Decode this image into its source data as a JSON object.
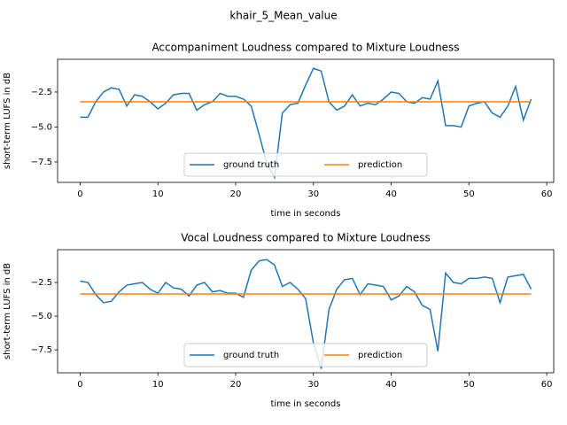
{
  "title": "khair_5_Mean_value",
  "chart_data": [
    {
      "type": "line",
      "title": "Accompaniment Loudness compared to Mixture Loudness",
      "x_label": "time in seconds",
      "y_label": "short-term LUFS in dB",
      "x": [
        0,
        1,
        2,
        3,
        4,
        5,
        6,
        7,
        8,
        9,
        10,
        11,
        12,
        13,
        14,
        15,
        16,
        17,
        18,
        19,
        20,
        21,
        22,
        23,
        24,
        25,
        26,
        27,
        28,
        29,
        30,
        31,
        32,
        33,
        34,
        35,
        36,
        37,
        38,
        39,
        40,
        41,
        42,
        43,
        44,
        45,
        46,
        47,
        48,
        49,
        50,
        51,
        52,
        53,
        54,
        55,
        56,
        57,
        58
      ],
      "series": [
        {
          "name": "ground truth",
          "color": "#1f77b4",
          "values": [
            -4.3,
            -4.3,
            -3.2,
            -2.5,
            -2.2,
            -2.3,
            -3.5,
            -2.7,
            -2.8,
            -3.2,
            -3.7,
            -3.3,
            -2.7,
            -2.6,
            -2.6,
            -3.8,
            -3.4,
            -3.2,
            -2.6,
            -2.8,
            -2.8,
            -3.0,
            -3.5,
            -5.5,
            -7.6,
            -8.6,
            -4.0,
            -3.4,
            -3.3,
            -2.0,
            -0.8,
            -1.0,
            -3.2,
            -3.8,
            -3.5,
            -2.7,
            -3.5,
            -3.3,
            -3.4,
            -3.0,
            -2.5,
            -2.6,
            -3.2,
            -3.3,
            -2.9,
            -3.0,
            -1.7,
            -4.9,
            -4.9,
            -5.0,
            -3.5,
            -3.3,
            -3.2,
            -4.0,
            -4.3,
            -3.5,
            -2.1,
            -4.5,
            -3.0
          ]
        },
        {
          "name": "prediction",
          "color": "#ff7f0e",
          "values": [
            -3.2,
            -3.2,
            -3.2,
            -3.2,
            -3.2,
            -3.2,
            -3.2,
            -3.2,
            -3.2,
            -3.2,
            -3.2,
            -3.2,
            -3.2,
            -3.2,
            -3.2,
            -3.2,
            -3.2,
            -3.2,
            -3.2,
            -3.2,
            -3.2,
            -3.2,
            -3.2,
            -3.2,
            -3.2,
            -3.2,
            -3.2,
            -3.2,
            -3.2,
            -3.2,
            -3.2,
            -3.2,
            -3.2,
            -3.2,
            -3.2,
            -3.2,
            -3.2,
            -3.2,
            -3.2,
            -3.2,
            -3.2,
            -3.2,
            -3.2,
            -3.2,
            -3.2,
            -3.2,
            -3.2,
            -3.2,
            -3.2,
            -3.2,
            -3.2,
            -3.2,
            -3.2,
            -3.2,
            -3.2,
            -3.2,
            -3.2,
            -3.2,
            -3.2
          ]
        }
      ],
      "xlim": [
        -2.9,
        60.9
      ],
      "ylim": [
        -8.96,
        -0.16
      ],
      "xticks": [
        0,
        10,
        20,
        30,
        40,
        50,
        60
      ],
      "yticks": [
        {
          "value": -7.5,
          "label": "−7.5"
        },
        {
          "value": -5,
          "label": "−5.0"
        },
        {
          "value": -2.5,
          "label": "−2.5"
        }
      ],
      "grid": false,
      "legend": "lower center"
    },
    {
      "type": "line",
      "title": "Vocal Loudness compared to Mixture Loudness",
      "x_label": "time in seconds",
      "y_label": "short-term LUFS in dB",
      "x": [
        0,
        1,
        2,
        3,
        4,
        5,
        6,
        7,
        8,
        9,
        10,
        11,
        12,
        13,
        14,
        15,
        16,
        17,
        18,
        19,
        20,
        21,
        22,
        23,
        24,
        25,
        26,
        27,
        28,
        29,
        30,
        31,
        32,
        33,
        34,
        35,
        36,
        37,
        38,
        39,
        40,
        41,
        42,
        43,
        44,
        45,
        46,
        47,
        48,
        49,
        50,
        51,
        52,
        53,
        54,
        55,
        56,
        57,
        58
      ],
      "series": [
        {
          "name": "ground truth",
          "color": "#1f77b4",
          "values": [
            -2.4,
            -2.5,
            -3.4,
            -4.0,
            -3.9,
            -3.2,
            -2.7,
            -2.6,
            -2.5,
            -3.0,
            -3.3,
            -2.5,
            -2.9,
            -3.0,
            -3.5,
            -2.7,
            -2.5,
            -3.2,
            -3.1,
            -3.3,
            -3.3,
            -3.6,
            -1.6,
            -0.9,
            -0.8,
            -1.2,
            -2.8,
            -2.5,
            -3.0,
            -3.7,
            -7.0,
            -8.9,
            -4.5,
            -3.0,
            -2.3,
            -2.2,
            -3.4,
            -2.6,
            -2.7,
            -2.8,
            -3.8,
            -3.5,
            -2.8,
            -3.2,
            -4.2,
            -4.5,
            -7.6,
            -1.8,
            -2.5,
            -2.6,
            -2.2,
            -2.2,
            -2.1,
            -2.2,
            -4.0,
            -2.1,
            -2.0,
            -1.9,
            -3.0
          ]
        },
        {
          "name": "prediction",
          "color": "#ff7f0e",
          "values": [
            -3.35,
            -3.35,
            -3.35,
            -3.35,
            -3.35,
            -3.35,
            -3.35,
            -3.35,
            -3.35,
            -3.35,
            -3.35,
            -3.35,
            -3.35,
            -3.35,
            -3.35,
            -3.35,
            -3.35,
            -3.35,
            -3.35,
            -3.35,
            -3.35,
            -3.35,
            -3.35,
            -3.35,
            -3.35,
            -3.35,
            -3.35,
            -3.35,
            -3.35,
            -3.35,
            -3.35,
            -3.35,
            -3.35,
            -3.35,
            -3.35,
            -3.35,
            -3.35,
            -3.35,
            -3.35,
            -3.35,
            -3.35,
            -3.35,
            -3.35,
            -3.35,
            -3.35,
            -3.35,
            -3.35,
            -3.35,
            -3.35,
            -3.35,
            -3.35,
            -3.35,
            -3.35,
            -3.35,
            -3.35,
            -3.35,
            -3.35,
            -3.35,
            -3.35
          ]
        }
      ],
      "xlim": [
        -2.9,
        60.9
      ],
      "ylim": [
        -9.2,
        -0.07
      ],
      "xticks": [
        0,
        10,
        20,
        30,
        40,
        50,
        60
      ],
      "yticks": [
        {
          "value": -7.5,
          "label": "−7.5"
        },
        {
          "value": -5,
          "label": "−5.0"
        },
        {
          "value": -2.5,
          "label": "−2.5"
        }
      ],
      "grid": false,
      "legend": "lower center"
    }
  ]
}
